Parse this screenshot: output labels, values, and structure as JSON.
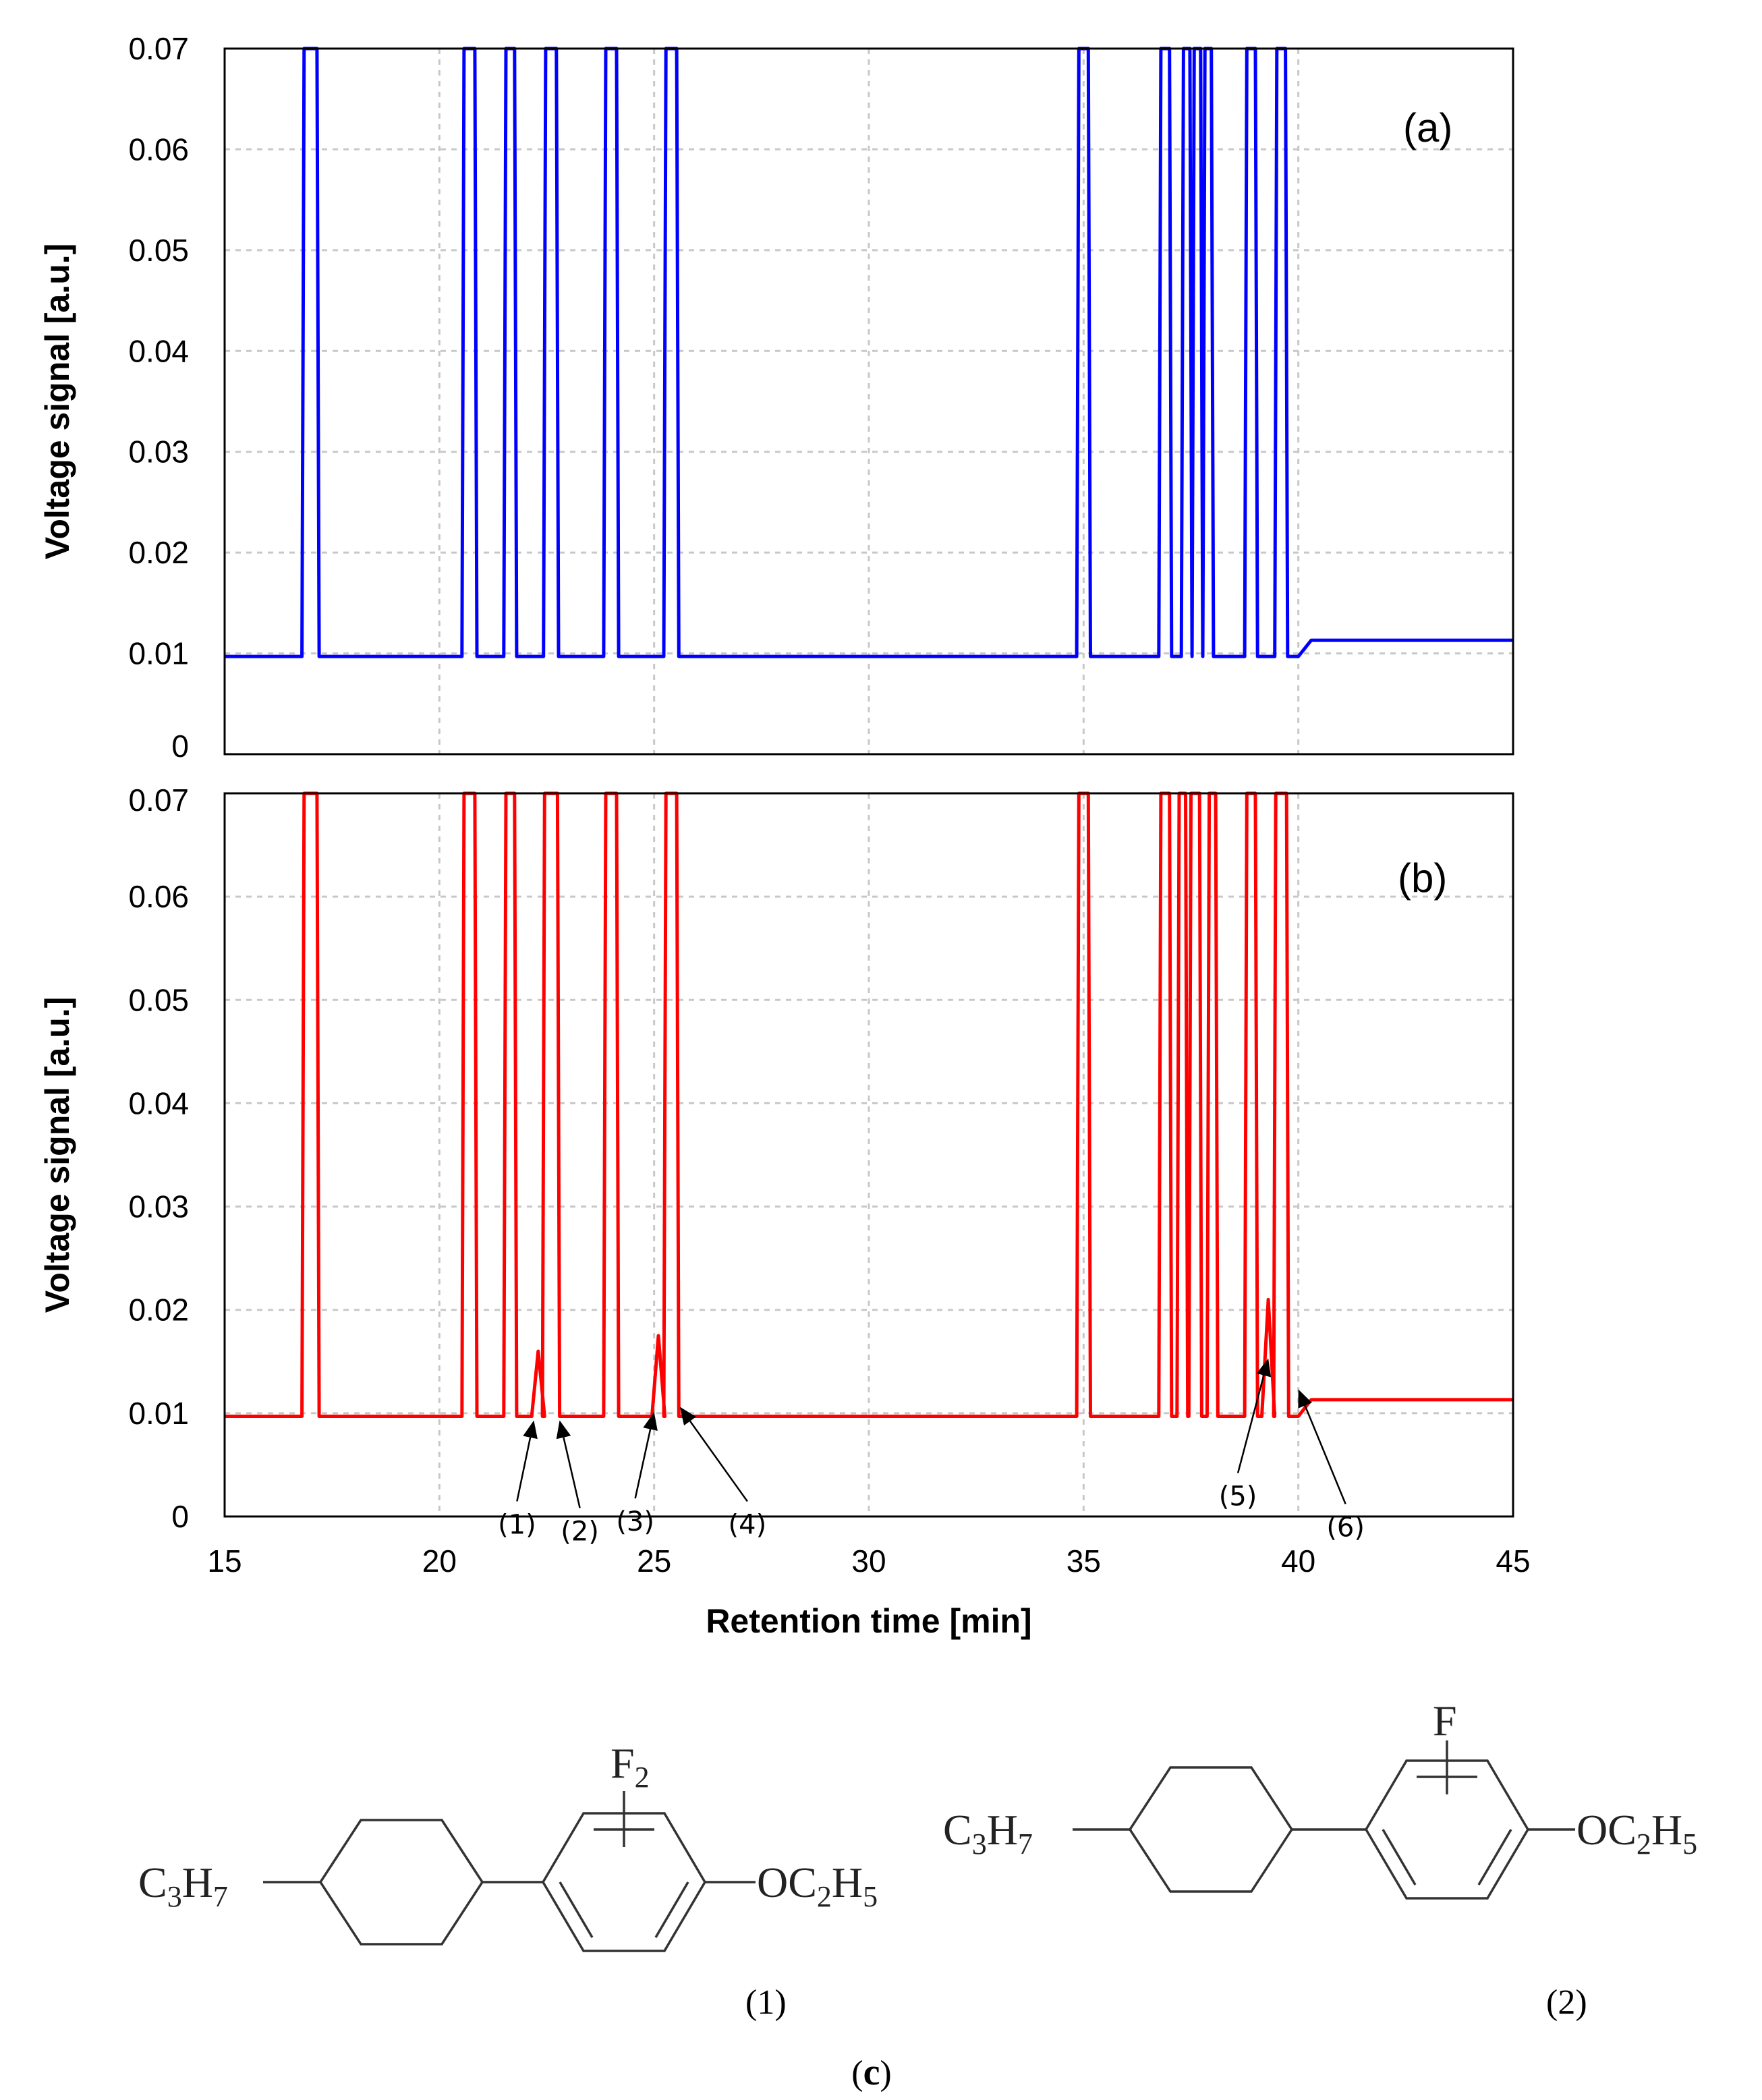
{
  "chart_data": [
    {
      "type": "line",
      "panel_label": "(a)",
      "ylabel": "Voltage signal [a.u.]",
      "xlim": [
        15,
        45
      ],
      "ylim": [
        0,
        0.07
      ],
      "xticks": [
        15,
        20,
        25,
        30,
        35,
        40,
        45
      ],
      "yticks": [
        "0",
        "0.01",
        "0.02",
        "0.03",
        "0.04",
        "0.05",
        "0.06",
        "0.07"
      ],
      "grid": true,
      "color": "#0000ff",
      "series": [
        {
          "baseline": 0.0097,
          "peaks": [
            {
              "x": 17.0,
              "width": 0.3
            },
            {
              "x": 20.7,
              "width": 0.25
            },
            {
              "x": 21.65,
              "width": 0.2
            },
            {
              "x": 22.6,
              "width": 0.25
            },
            {
              "x": 24.0,
              "width": 0.25
            },
            {
              "x": 25.4,
              "width": 0.25
            },
            {
              "x": 35.0,
              "width": 0.22
            },
            {
              "x": 36.9,
              "width": 0.2
            },
            {
              "x": 37.4,
              "width": 0.15
            },
            {
              "x": 37.65,
              "width": 0.15
            },
            {
              "x": 37.9,
              "width": 0.15
            },
            {
              "x": 38.9,
              "width": 0.2
            },
            {
              "x": 39.6,
              "width": 0.2
            }
          ],
          "tail": {
            "x_start": 40.0,
            "x_end": 45.0,
            "y": 0.0113
          }
        }
      ]
    },
    {
      "type": "line",
      "panel_label": "(b)",
      "xlabel": "Retention time [min]",
      "ylabel": "Voltage signal [a.u.]",
      "xlim": [
        15,
        45
      ],
      "ylim": [
        0,
        0.07
      ],
      "xticks": [
        15,
        20,
        25,
        30,
        35,
        40,
        45
      ],
      "yticks": [
        "0",
        "0.01",
        "0.02",
        "0.03",
        "0.04",
        "0.05",
        "0.06",
        "0.07"
      ],
      "grid": true,
      "color": "#ff0000",
      "series": [
        {
          "baseline": 0.0097,
          "peaks": [
            {
              "x": 17.0,
              "width": 0.3
            },
            {
              "x": 20.7,
              "width": 0.25
            },
            {
              "x": 21.65,
              "width": 0.2
            },
            {
              "x": 22.6,
              "width": 0.3
            },
            {
              "x": 24.0,
              "width": 0.25
            },
            {
              "x": 25.4,
              "width": 0.25
            },
            {
              "x": 35.0,
              "width": 0.22
            },
            {
              "x": 36.9,
              "width": 0.2
            },
            {
              "x": 37.3,
              "width": 0.15
            },
            {
              "x": 37.6,
              "width": 0.2
            },
            {
              "x": 38.0,
              "width": 0.15
            },
            {
              "x": 38.9,
              "width": 0.2
            },
            {
              "x": 39.6,
              "width": 0.25
            }
          ],
          "small_peaks": [
            {
              "x": 22.3,
              "y": 0.016
            },
            {
              "x": 25.1,
              "y": 0.0175
            },
            {
              "x": 39.3,
              "y": 0.021
            }
          ],
          "tail": {
            "x_start": 40.0,
            "x_end": 45.0,
            "y": 0.0113
          }
        }
      ],
      "annotations": [
        {
          "label": "(1)",
          "x": 22.2,
          "y": 0.0097
        },
        {
          "label": "(2)",
          "x": 22.8,
          "y": 0.0097
        },
        {
          "label": "(3)",
          "x": 25.0,
          "y": 0.0105
        },
        {
          "label": "(4)",
          "x": 25.6,
          "y": 0.011
        },
        {
          "label": "(5)",
          "x": 39.3,
          "y": 0.0157
        },
        {
          "label": "(6)",
          "x": 40.0,
          "y": 0.0127
        }
      ]
    }
  ],
  "structures": {
    "left": {
      "alkyl": "C3H7",
      "alkyl_main": "C",
      "alkyl_n1": "3",
      "alkyl_h": "H",
      "alkyl_n2": "7",
      "substituent_main": "F",
      "substituent_sub": "2",
      "ether_main": "OC",
      "ether_n1": "2",
      "ether_h": "H",
      "ether_n2": "5",
      "label": "(1)"
    },
    "right": {
      "alkyl_main": "C",
      "alkyl_n1": "3",
      "alkyl_h": "H",
      "alkyl_n2": "7",
      "substituent_main": "F",
      "ether_main": "OC",
      "ether_n1": "2",
      "ether_h": "H",
      "ether_n2": "5",
      "label": "(2)"
    },
    "caption_open": "(",
    "caption_letter": "c",
    "caption_close": ")"
  },
  "colors": {
    "series_a": "#0000ff",
    "series_b": "#ff0000",
    "grid": "#c8c8c8"
  }
}
